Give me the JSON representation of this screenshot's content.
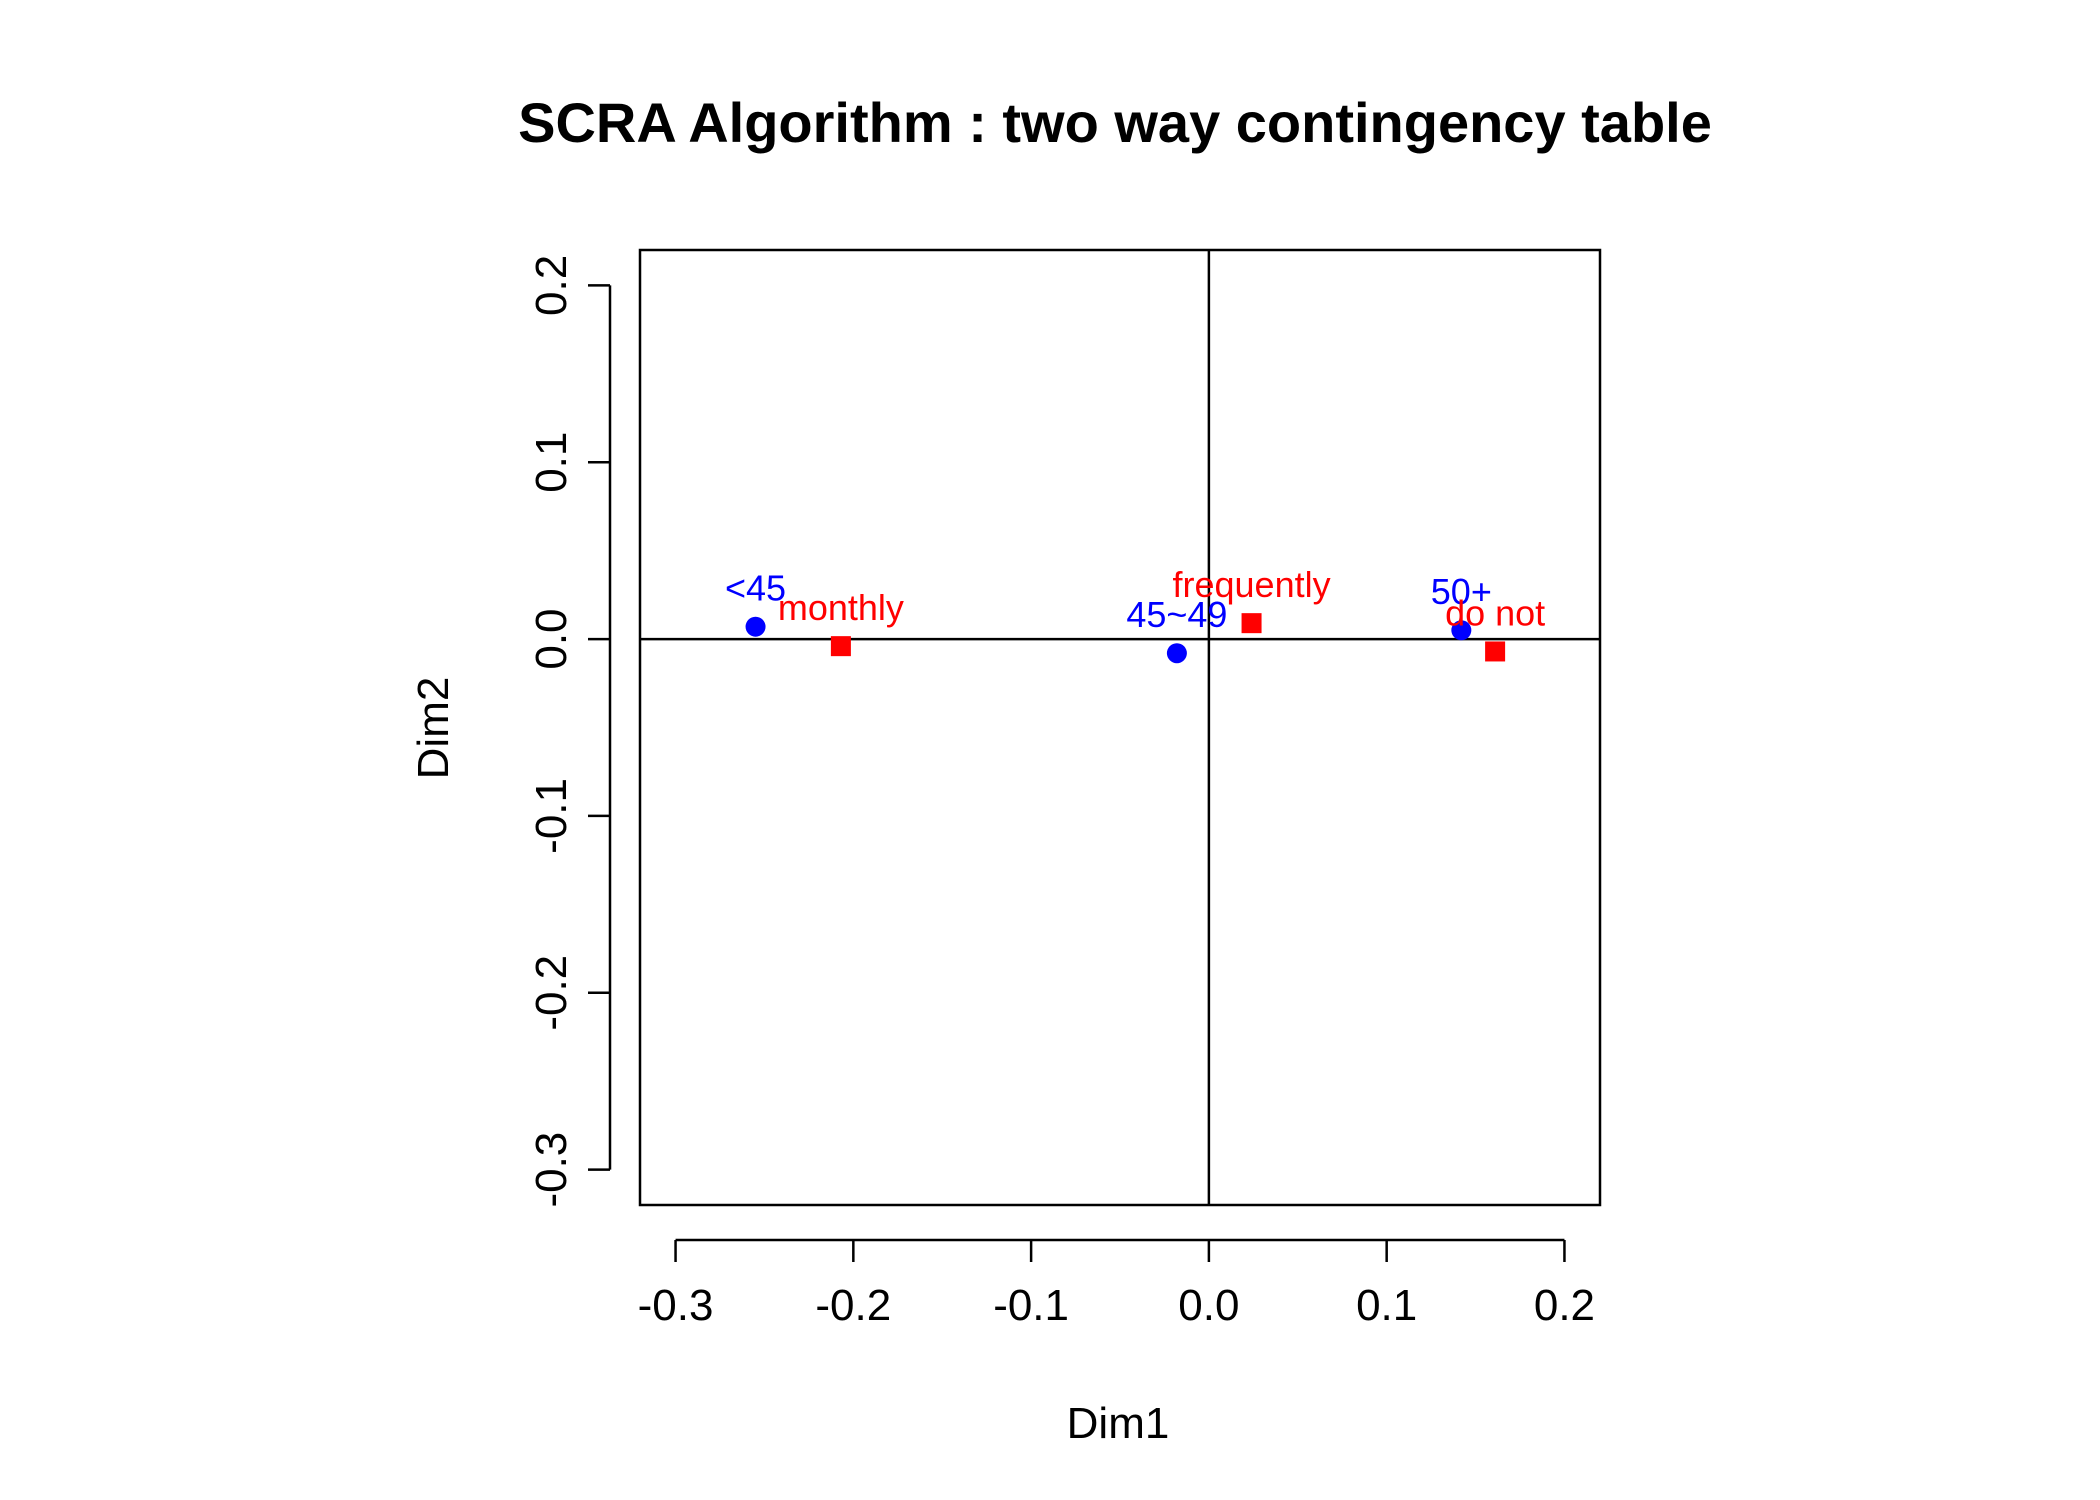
{
  "chart_data": {
    "type": "scatter",
    "title": "SCRA Algorithm : two way contingency table",
    "xlabel": "Dim1",
    "ylabel": "Dim2",
    "xlim": [
      -0.32,
      0.22
    ],
    "ylim": [
      -0.32,
      0.22
    ],
    "xticks": [
      -0.3,
      -0.2,
      -0.1,
      0.0,
      0.1,
      0.2
    ],
    "xtick_labels": [
      "-0.3",
      "-0.2",
      "-0.1",
      "0.0",
      "0.1",
      "0.2"
    ],
    "yticks": [
      -0.3,
      -0.2,
      -0.1,
      0.0,
      0.1,
      0.2
    ],
    "ytick_labels": [
      "-0.3",
      "-0.2",
      "-0.1",
      "0.0",
      "0.1",
      "0.2"
    ],
    "reference_lines": {
      "x": 0.0,
      "y": 0.0
    },
    "grid": false,
    "series": [
      {
        "marker": "circle",
        "color": "#0000FF",
        "points": [
          {
            "label": "<45",
            "x": -0.255,
            "y": 0.007
          },
          {
            "label": "45~49",
            "x": -0.018,
            "y": -0.008
          },
          {
            "label": "50+",
            "x": 0.142,
            "y": 0.005
          }
        ]
      },
      {
        "marker": "square",
        "color": "#FF0000",
        "points": [
          {
            "label": "monthly",
            "x": -0.207,
            "y": -0.004
          },
          {
            "label": "frequently",
            "x": 0.024,
            "y": 0.009
          },
          {
            "label": "do not",
            "x": 0.161,
            "y": -0.007
          }
        ]
      }
    ]
  }
}
